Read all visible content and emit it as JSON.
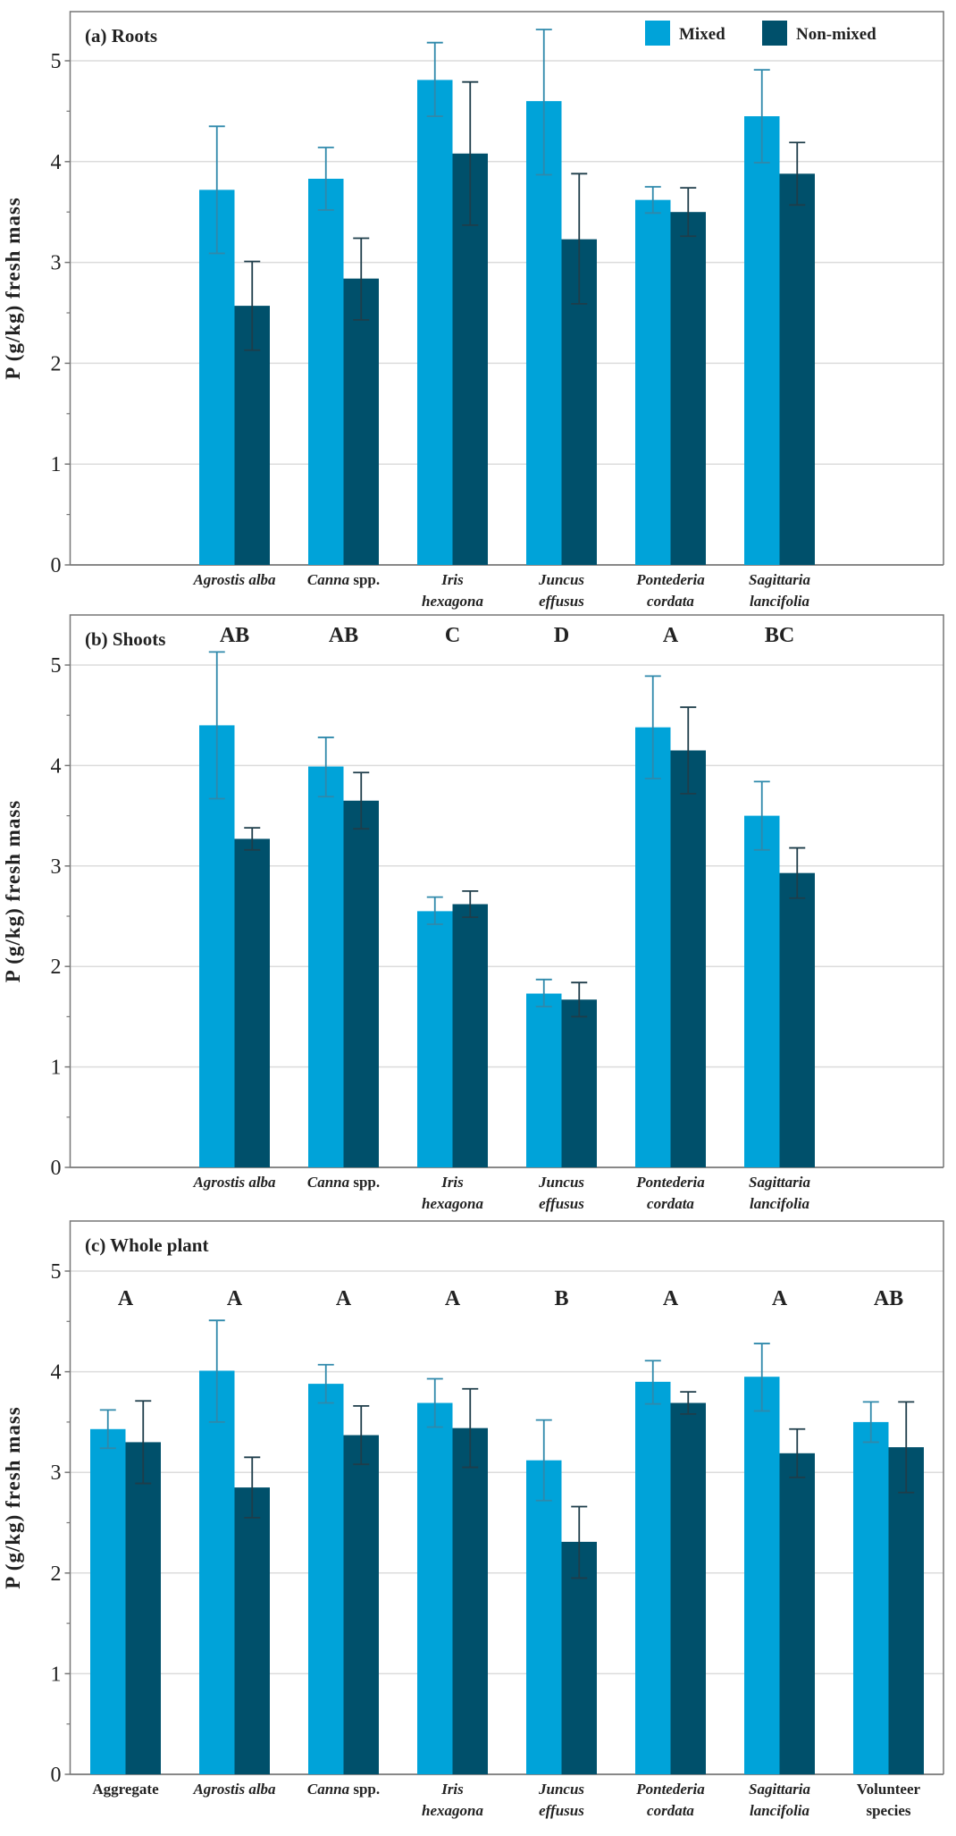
{
  "colors": {
    "mixed": "#00a3d9",
    "non_mixed": "#00506b",
    "err_mixed": "#2f89ab",
    "err_non_mixed": "#1e3d4a",
    "grid": "#dcdcdc",
    "axis": "#777777"
  },
  "chart_data": [
    {
      "type": "bar",
      "title": "(a) Roots",
      "ylabel": "P (g/kg) fresh mass",
      "ylim": [
        0,
        5.4
      ],
      "yticks": [
        0,
        1,
        2,
        3,
        4,
        5
      ],
      "grid": true,
      "legend": {
        "placement": "top-right",
        "entries": [
          "Mixed",
          "Non-mixed"
        ]
      },
      "slot_offset": 1,
      "categories": [
        {
          "lines": [
            "Agrostis alba"
          ],
          "italic": true
        },
        {
          "lines": [
            "Canna"
          ],
          "suffix": " spp.",
          "italic": true
        },
        {
          "lines": [
            "Iris",
            "hexagona"
          ],
          "italic": true
        },
        {
          "lines": [
            "Juncus",
            "effusus"
          ],
          "italic": true
        },
        {
          "lines": [
            "Pontederia",
            "cordata"
          ],
          "italic": true
        },
        {
          "lines": [
            "Sagittaria",
            "lancifolia"
          ],
          "italic": true
        }
      ],
      "letters": [],
      "series": [
        {
          "name": "Mixed",
          "values": [
            3.72,
            3.83,
            4.81,
            4.6,
            3.62,
            4.45
          ],
          "err_low": [
            3.09,
            3.52,
            4.45,
            3.87,
            3.49,
            3.99
          ],
          "err_high": [
            4.35,
            4.14,
            5.18,
            5.31,
            3.75,
            4.91
          ]
        },
        {
          "name": "Non-mixed",
          "values": [
            2.57,
            2.84,
            4.08,
            3.23,
            3.5,
            3.88
          ],
          "err_low": [
            2.13,
            2.43,
            3.37,
            2.59,
            3.26,
            3.57
          ],
          "err_high": [
            3.01,
            3.24,
            4.79,
            3.88,
            3.74,
            4.19
          ]
        }
      ]
    },
    {
      "type": "bar",
      "title": "(b) Shoots",
      "ylabel": "P (g/kg) fresh mass",
      "ylim": [
        0,
        5.5
      ],
      "yticks": [
        0,
        1,
        2,
        3,
        4,
        5
      ],
      "grid": true,
      "slot_offset": 1,
      "categories": [
        {
          "lines": [
            "Agrostis alba"
          ],
          "italic": true
        },
        {
          "lines": [
            "Canna"
          ],
          "suffix": " spp.",
          "italic": true
        },
        {
          "lines": [
            "Iris",
            "hexagona"
          ],
          "italic": true
        },
        {
          "lines": [
            "Juncus",
            "effusus"
          ],
          "italic": true
        },
        {
          "lines": [
            "Pontederia",
            "cordata"
          ],
          "italic": true
        },
        {
          "lines": [
            "Sagittaria",
            "lancifolia"
          ],
          "italic": true
        }
      ],
      "letters": [
        "AB",
        "AB",
        "C",
        "D",
        "A",
        "BC"
      ],
      "series": [
        {
          "name": "Mixed",
          "values": [
            4.4,
            3.99,
            2.55,
            1.73,
            4.38,
            3.5
          ],
          "err_low": [
            3.67,
            3.69,
            2.42,
            1.6,
            3.87,
            3.16
          ],
          "err_high": [
            5.13,
            4.28,
            2.69,
            1.87,
            4.89,
            3.84
          ]
        },
        {
          "name": "Non-mixed",
          "values": [
            3.27,
            3.65,
            2.62,
            1.67,
            4.15,
            2.93
          ],
          "err_low": [
            3.16,
            3.37,
            2.49,
            1.5,
            3.72,
            2.68
          ],
          "err_high": [
            3.38,
            3.93,
            2.75,
            1.84,
            4.58,
            3.18
          ]
        }
      ]
    },
    {
      "type": "bar",
      "title": "(c) Whole plant",
      "ylabel": "P (g/kg) fresh mass",
      "ylim": [
        0,
        5.5
      ],
      "yticks": [
        0,
        1,
        2,
        3,
        4,
        5
      ],
      "grid": true,
      "slot_offset": 0,
      "categories": [
        {
          "lines": [
            "Aggregate"
          ],
          "italic": false
        },
        {
          "lines": [
            "Agrostis alba"
          ],
          "italic": true
        },
        {
          "lines": [
            "Canna"
          ],
          "suffix": " spp.",
          "italic": true
        },
        {
          "lines": [
            "Iris",
            "hexagona"
          ],
          "italic": true
        },
        {
          "lines": [
            "Juncus",
            "effusus"
          ],
          "italic": true
        },
        {
          "lines": [
            "Pontederia",
            "cordata"
          ],
          "italic": true
        },
        {
          "lines": [
            "Sagittaria",
            "lancifolia"
          ],
          "italic": true
        },
        {
          "lines": [
            "Volunteer",
            "species"
          ],
          "italic": false
        }
      ],
      "letters": [
        "A",
        "A",
        "A",
        "A",
        "B",
        "A",
        "A",
        "AB"
      ],
      "series": [
        {
          "name": "Mixed",
          "values": [
            3.43,
            4.01,
            3.88,
            3.69,
            3.12,
            3.9,
            3.95,
            3.5
          ],
          "err_low": [
            3.24,
            3.5,
            3.69,
            3.45,
            2.72,
            3.68,
            3.61,
            3.3
          ],
          "err_high": [
            3.62,
            4.51,
            4.07,
            3.93,
            3.52,
            4.11,
            4.28,
            3.7
          ]
        },
        {
          "name": "Non-mixed",
          "values": [
            3.3,
            2.85,
            3.37,
            3.44,
            2.31,
            3.69,
            3.19,
            3.25
          ],
          "err_low": [
            2.89,
            2.55,
            3.08,
            3.05,
            1.95,
            3.58,
            2.95,
            2.8
          ],
          "err_high": [
            3.71,
            3.15,
            3.66,
            3.83,
            2.66,
            3.8,
            3.43,
            3.7
          ]
        }
      ]
    }
  ]
}
